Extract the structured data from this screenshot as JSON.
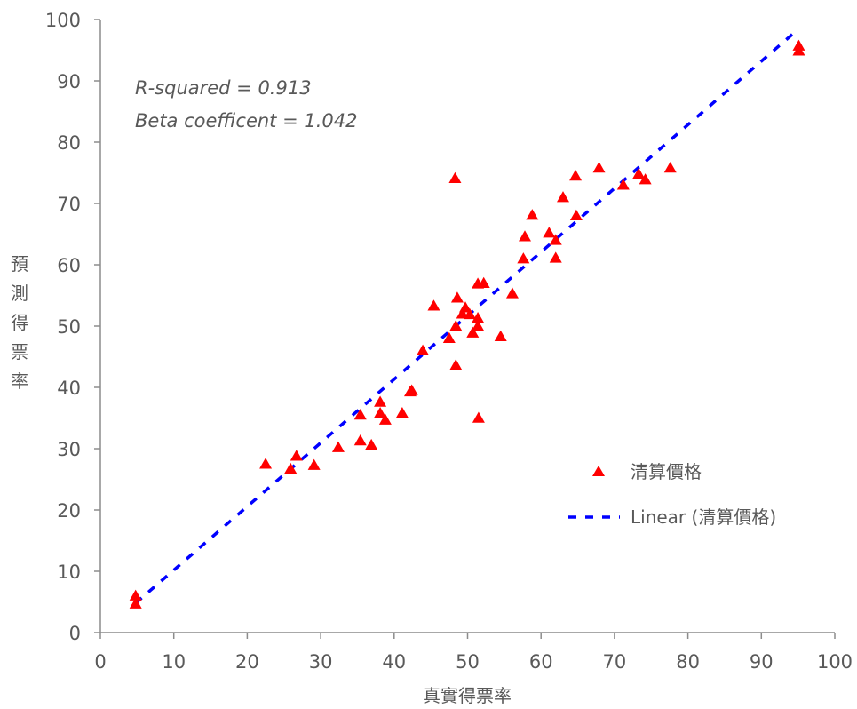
{
  "chart_data": {
    "type": "scatter",
    "xlabel": "真實得票率",
    "ylabel": "預測得票率",
    "xlim": [
      0,
      100
    ],
    "ylim": [
      0,
      100
    ],
    "x_ticks": [
      0,
      10,
      20,
      30,
      40,
      50,
      60,
      70,
      80,
      90,
      100
    ],
    "y_ticks": [
      0,
      10,
      20,
      30,
      40,
      50,
      60,
      70,
      80,
      90,
      100
    ],
    "grid": false,
    "annotations": [
      "R-squared = 0.913",
      "Beta coefficent = 1.042"
    ],
    "legend_position": "bottom-right",
    "series": [
      {
        "name": "清算價格",
        "marker": "triangle",
        "color": "#FF0000",
        "points": [
          [
            4.8,
            6.0
          ],
          [
            4.8,
            4.7
          ],
          [
            22.5,
            27.5
          ],
          [
            25.9,
            26.7
          ],
          [
            26.7,
            28.8
          ],
          [
            29.1,
            27.3
          ],
          [
            32.4,
            30.2
          ],
          [
            35.4,
            35.5
          ],
          [
            35.4,
            31.3
          ],
          [
            36.9,
            30.6
          ],
          [
            38.1,
            37.6
          ],
          [
            38.1,
            35.8
          ],
          [
            38.8,
            34.7
          ],
          [
            41.1,
            35.8
          ],
          [
            42.2,
            39.3
          ],
          [
            42.4,
            39.5
          ],
          [
            43.9,
            46.0
          ],
          [
            45.4,
            53.3
          ],
          [
            47.5,
            48.0
          ],
          [
            48.3,
            74.1
          ],
          [
            48.4,
            43.6
          ],
          [
            48.6,
            54.6
          ],
          [
            48.4,
            50.0
          ],
          [
            49.3,
            52.0
          ],
          [
            49.7,
            53.0
          ],
          [
            50.3,
            51.9
          ],
          [
            50.7,
            48.9
          ],
          [
            51.4,
            50.0
          ],
          [
            51.4,
            51.3
          ],
          [
            51.5,
            35.0
          ],
          [
            51.4,
            56.9
          ],
          [
            52.2,
            57.0
          ],
          [
            54.5,
            48.3
          ],
          [
            56.1,
            55.3
          ],
          [
            57.6,
            61.0
          ],
          [
            57.8,
            64.6
          ],
          [
            58.8,
            68.1
          ],
          [
            61.1,
            65.2
          ],
          [
            62.0,
            64.0
          ],
          [
            62.0,
            61.1
          ],
          [
            63.0,
            71.0
          ],
          [
            64.7,
            74.5
          ],
          [
            64.8,
            68.0
          ],
          [
            67.9,
            75.8
          ],
          [
            71.2,
            73.0
          ],
          [
            73.3,
            74.8
          ],
          [
            74.2,
            73.9
          ],
          [
            77.6,
            75.8
          ],
          [
            95.1,
            95.7
          ],
          [
            95.1,
            94.9
          ]
        ]
      }
    ],
    "trendline": {
      "name": "Linear (清算價格)",
      "type": "linear",
      "color": "#0000FF",
      "style": "dashed",
      "from": [
        4.8,
        4.8
      ],
      "to": [
        95.1,
        98.5
      ]
    }
  }
}
